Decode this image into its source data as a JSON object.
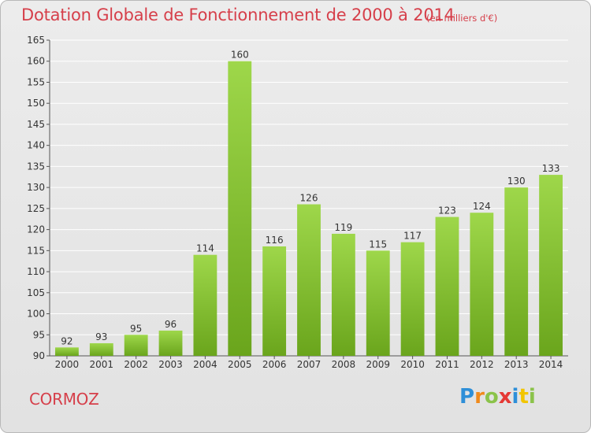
{
  "header": {
    "title": "Dotation Globale de Fonctionnement de 2000 à 2014",
    "unit_note": "(en milliers d'€)"
  },
  "footer": {
    "commune": "CORMOZ",
    "logo_text": "Proxiti",
    "logo_colors": [
      "#2e8fd8",
      "#f08a1c",
      "#8bc34a",
      "#e53935",
      "#2e8fd8",
      "#f2c500",
      "#8bc34a"
    ]
  },
  "colors": {
    "title": "#d63f4a",
    "bar_light": "#9ed74a",
    "bar_dark": "#6aa51c",
    "grid": "#ffffff",
    "plot_bg": "#e4e4e4"
  },
  "chart_data": {
    "type": "bar",
    "title": "Dotation Globale de Fonctionnement de 2000 à 2014",
    "subtitle": "(en milliers d'€)",
    "xlabel": "",
    "ylabel": "",
    "categories": [
      "2000",
      "2001",
      "2002",
      "2003",
      "2004",
      "2005",
      "2006",
      "2007",
      "2008",
      "2009",
      "2010",
      "2011",
      "2012",
      "2013",
      "2014"
    ],
    "values": [
      92,
      93,
      95,
      96,
      114,
      160,
      116,
      126,
      119,
      115,
      117,
      123,
      124,
      130,
      133
    ],
    "ylim": [
      90,
      165
    ],
    "yticks": [
      90,
      95,
      100,
      105,
      110,
      115,
      120,
      125,
      130,
      135,
      140,
      145,
      150,
      155,
      160,
      165
    ],
    "grid": true,
    "legend": "none"
  }
}
